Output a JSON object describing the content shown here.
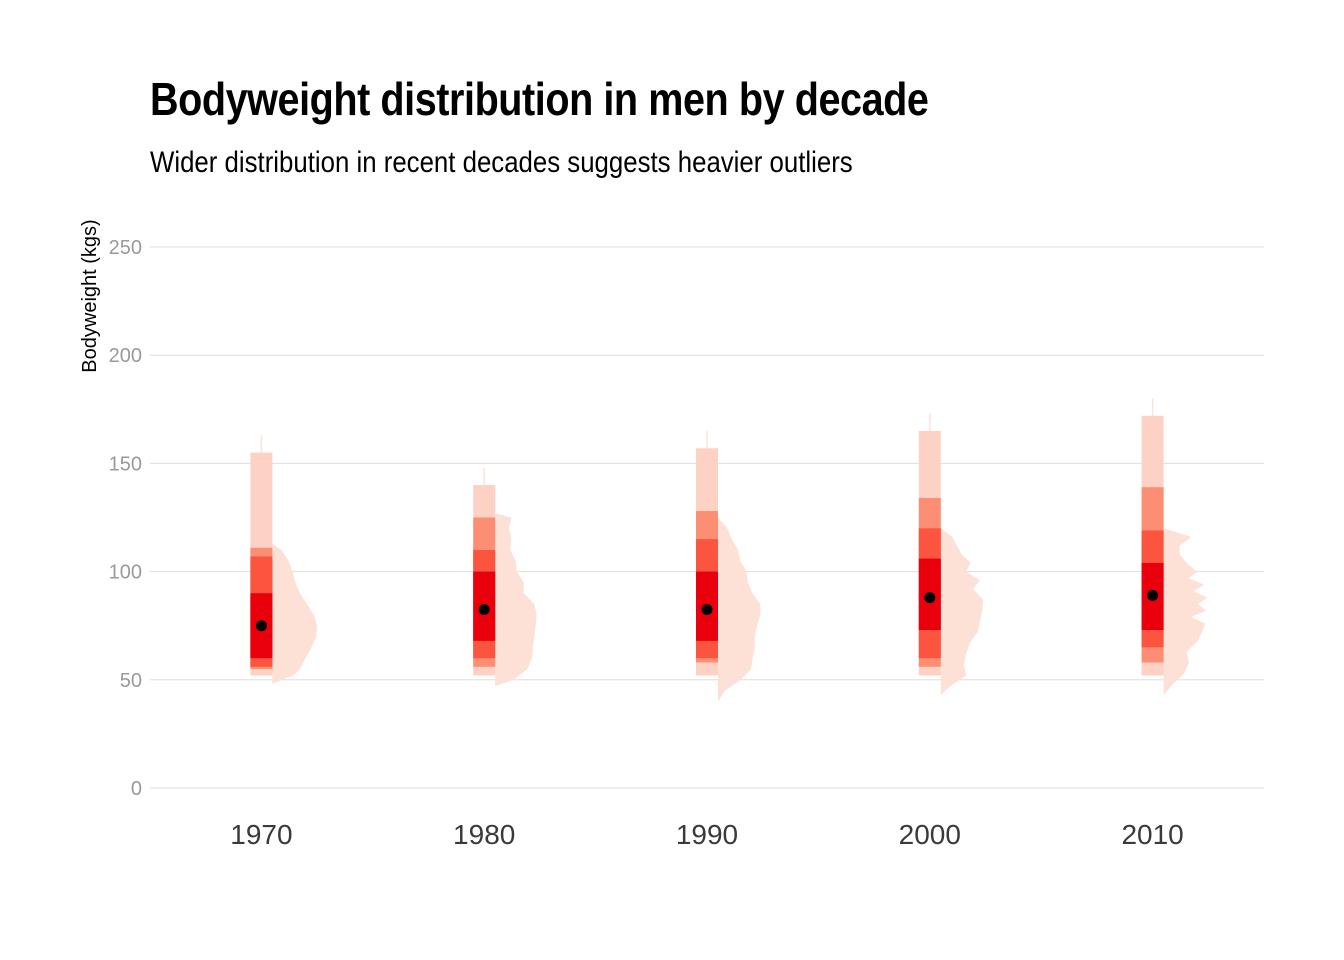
{
  "title": "Bodyweight distribution in men by decade",
  "subtitle": "Wider distribution in recent decades suggests heavier outliers",
  "chart_data": {
    "type": "interval+density",
    "title": "Bodyweight distribution in men by decade",
    "subtitle": "Wider distribution in recent decades suggests heavier outliers",
    "xlabel": "",
    "ylabel": "Bodyweight (kgs)",
    "ylim": [
      0,
      250
    ],
    "yticks": [
      0,
      50,
      100,
      150,
      200,
      250
    ],
    "categories": [
      "1970",
      "1980",
      "1990",
      "2000",
      "2010"
    ],
    "grid": "horizontal",
    "colors": {
      "intervals": [
        "#fdd2c4",
        "#fc8f73",
        "#fb5540",
        "#e9000c"
      ],
      "density": "#fde0d6",
      "median": "#000000",
      "grid": "#dedede"
    },
    "series": [
      {
        "category": "1970",
        "median": 75,
        "intervals": [
          [
            52,
            155
          ],
          [
            55,
            111
          ],
          [
            56,
            107
          ],
          [
            60,
            90
          ]
        ],
        "density": [
          [
            48,
            0
          ],
          [
            50,
            0.2
          ],
          [
            52,
            0.45
          ],
          [
            55,
            0.6
          ],
          [
            60,
            0.72
          ],
          [
            65,
            0.85
          ],
          [
            70,
            0.95
          ],
          [
            75,
            0.97
          ],
          [
            80,
            0.9
          ],
          [
            85,
            0.75
          ],
          [
            90,
            0.6
          ],
          [
            95,
            0.5
          ],
          [
            100,
            0.44
          ],
          [
            105,
            0.35
          ],
          [
            110,
            0.2
          ],
          [
            113,
            0
          ]
        ]
      },
      {
        "category": "1980",
        "median": 82.5,
        "intervals": [
          [
            52,
            140
          ],
          [
            56,
            125
          ],
          [
            60,
            110
          ],
          [
            68,
            100
          ]
        ],
        "density": [
          [
            47,
            0
          ],
          [
            50,
            0.4
          ],
          [
            55,
            0.7
          ],
          [
            60,
            0.8
          ],
          [
            65,
            0.82
          ],
          [
            70,
            0.85
          ],
          [
            75,
            0.88
          ],
          [
            80,
            0.9
          ],
          [
            85,
            0.85
          ],
          [
            90,
            0.62
          ],
          [
            95,
            0.62
          ],
          [
            100,
            0.47
          ],
          [
            105,
            0.44
          ],
          [
            110,
            0.33
          ],
          [
            115,
            0.35
          ],
          [
            120,
            0.3
          ],
          [
            125,
            0.35
          ],
          [
            127,
            0
          ]
        ]
      },
      {
        "category": "1990",
        "median": 82.5,
        "intervals": [
          [
            52,
            157
          ],
          [
            58,
            128
          ],
          [
            60,
            115
          ],
          [
            68,
            100
          ]
        ],
        "density": [
          [
            40,
            0
          ],
          [
            45,
            0.15
          ],
          [
            50,
            0.5
          ],
          [
            55,
            0.72
          ],
          [
            60,
            0.75
          ],
          [
            65,
            0.8
          ],
          [
            70,
            0.8
          ],
          [
            75,
            0.85
          ],
          [
            80,
            0.92
          ],
          [
            85,
            0.92
          ],
          [
            90,
            0.75
          ],
          [
            95,
            0.65
          ],
          [
            100,
            0.62
          ],
          [
            105,
            0.48
          ],
          [
            110,
            0.44
          ],
          [
            115,
            0.3
          ],
          [
            120,
            0.2
          ],
          [
            125,
            0
          ]
        ]
      },
      {
        "category": "2000",
        "median": 88,
        "intervals": [
          [
            52,
            165
          ],
          [
            56,
            134
          ],
          [
            60,
            120
          ],
          [
            73,
            106
          ]
        ],
        "density": [
          [
            43,
            0
          ],
          [
            47,
            0.2
          ],
          [
            52,
            0.55
          ],
          [
            57,
            0.5
          ],
          [
            62,
            0.55
          ],
          [
            67,
            0.63
          ],
          [
            72,
            0.8
          ],
          [
            77,
            0.85
          ],
          [
            82,
            0.9
          ],
          [
            87,
            0.92
          ],
          [
            92,
            0.7
          ],
          [
            96,
            0.85
          ],
          [
            100,
            0.55
          ],
          [
            104,
            0.65
          ],
          [
            108,
            0.45
          ],
          [
            112,
            0.35
          ],
          [
            116,
            0.25
          ],
          [
            120,
            0
          ]
        ]
      },
      {
        "category": "2010",
        "median": 89,
        "intervals": [
          [
            52,
            172
          ],
          [
            58,
            139
          ],
          [
            65,
            119
          ],
          [
            73,
            104
          ]
        ],
        "density": [
          [
            43,
            0
          ],
          [
            48,
            0.2
          ],
          [
            53,
            0.45
          ],
          [
            58,
            0.55
          ],
          [
            63,
            0.5
          ],
          [
            68,
            0.75
          ],
          [
            73,
            0.85
          ],
          [
            76,
            0.9
          ],
          [
            79,
            0.6
          ],
          [
            82,
            0.92
          ],
          [
            85,
            0.75
          ],
          [
            88,
            0.95
          ],
          [
            91,
            0.65
          ],
          [
            94,
            0.88
          ],
          [
            97,
            0.55
          ],
          [
            100,
            0.72
          ],
          [
            104,
            0.5
          ],
          [
            108,
            0.35
          ],
          [
            112,
            0.35
          ],
          [
            116,
            0.6
          ],
          [
            120,
            0
          ]
        ]
      }
    ]
  }
}
